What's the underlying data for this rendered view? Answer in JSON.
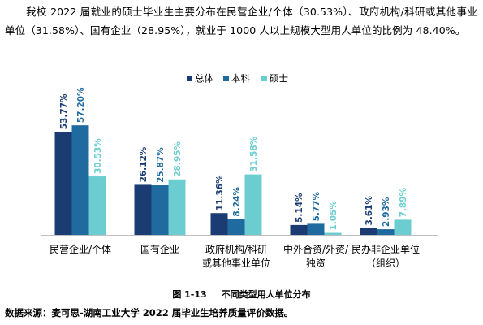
{
  "document": {
    "paragraph": "我校 2022 届就业的硕士毕业生主要分布在民营企业/个体（30.53%）、政府机构/科研或其他事业单位（31.58%）、国有企业（28.95%），就业于 1000 人以上规模大型用人单位的比例为 48.40%。",
    "figure_number": "图 1-13",
    "figure_title": "不同类型用人单位分布",
    "source": "数据来源：麦可思-湖南工业大学 2022 届毕业生培养质量评价数据。"
  },
  "chart_data": {
    "type": "bar",
    "categories": [
      [
        "民营企业/个体"
      ],
      [
        "国有企业"
      ],
      [
        "政府机构/科研",
        "或其他事业单位"
      ],
      [
        "中外合资/外资/",
        "独资"
      ],
      [
        "民办非企业单位",
        "（组织）"
      ]
    ],
    "series": [
      {
        "name": "总体",
        "color": "#1b3c73",
        "values": [
          53.77,
          26.12,
          11.36,
          5.14,
          3.61
        ],
        "labels": [
          "53.77%",
          "26.12%",
          "11.36%",
          "5.14%",
          "3.61%"
        ]
      },
      {
        "name": "本科",
        "color": "#1f6b9f",
        "values": [
          57.2,
          25.87,
          8.24,
          5.77,
          2.93
        ],
        "labels": [
          "57.20%",
          "25.87%",
          "8.24%",
          "5.77%",
          "2.93%"
        ]
      },
      {
        "name": "硕士",
        "color": "#6ccdd0",
        "values": [
          30.53,
          28.95,
          31.58,
          1.05,
          7.89
        ],
        "labels": [
          "30.53%",
          "28.95%",
          "31.58%",
          "1.05%",
          "7.89%"
        ]
      }
    ],
    "ylim": [
      0,
      70
    ],
    "legend_position": "top-center",
    "grid": false,
    "title": "",
    "xlabel": "",
    "ylabel": ""
  }
}
